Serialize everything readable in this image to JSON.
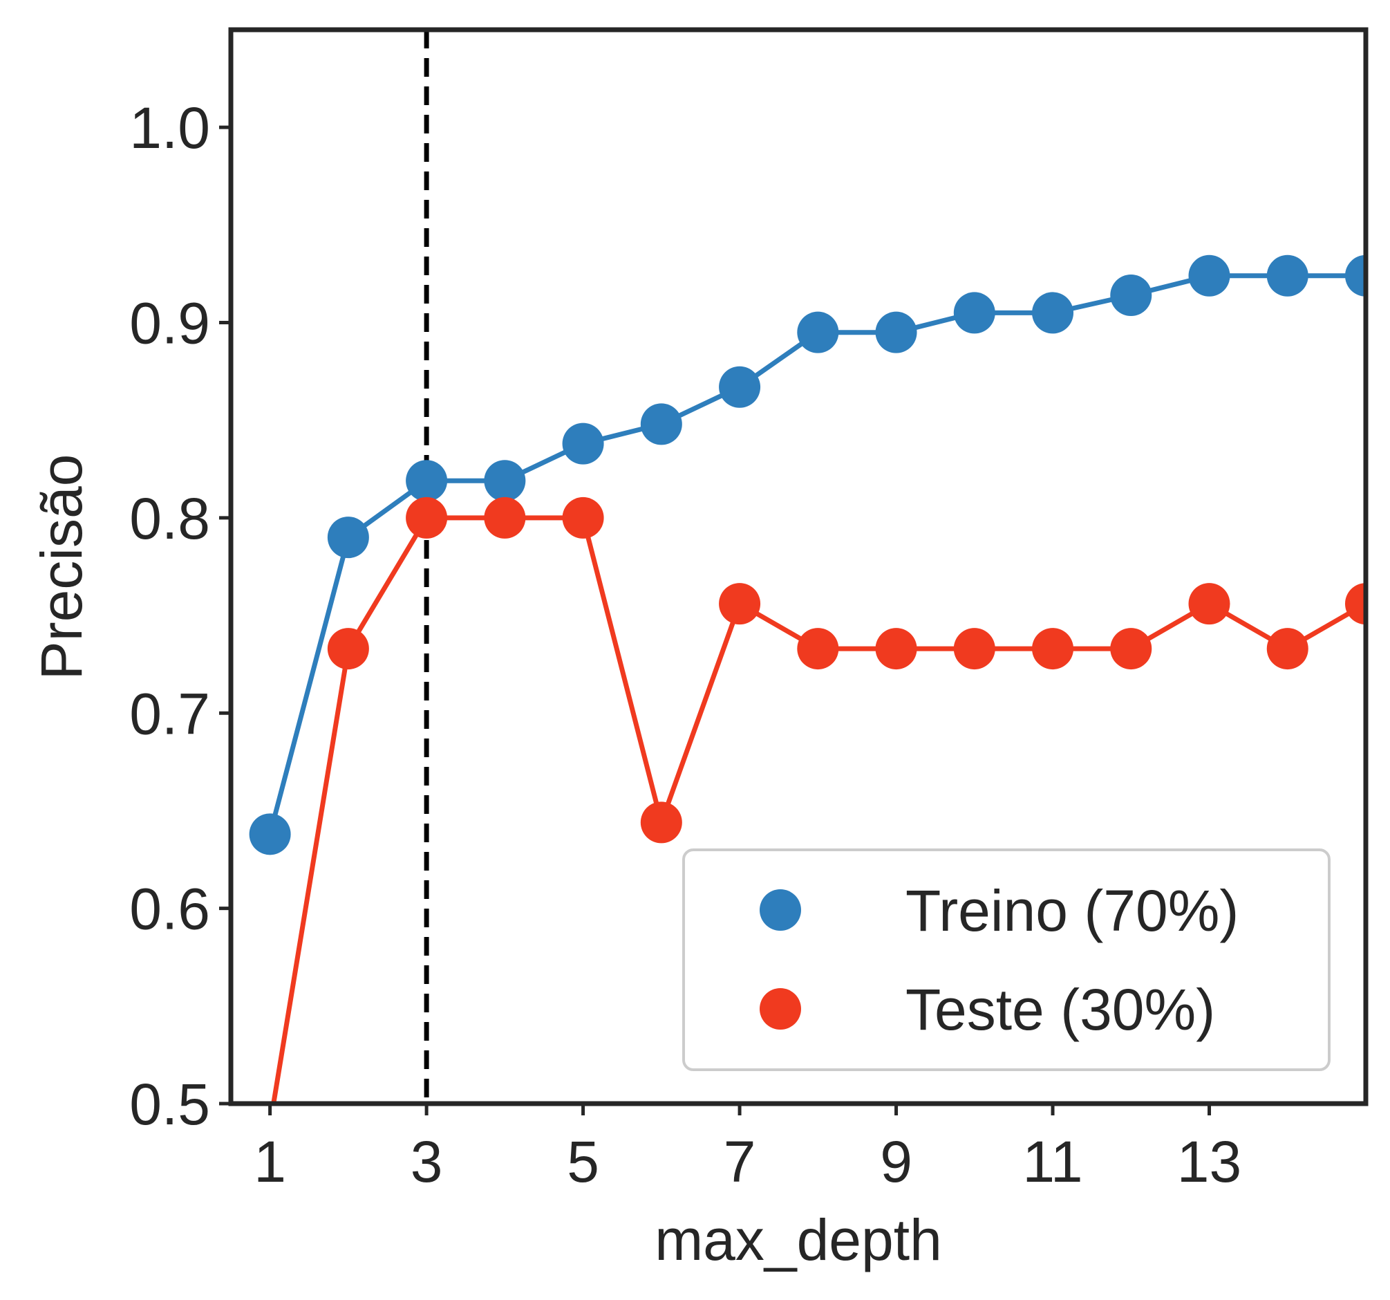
{
  "chart_data": {
    "type": "line",
    "title": "",
    "xlabel": "max_depth",
    "ylabel": "Precisão",
    "xlim": [
      0.5,
      15.0
    ],
    "ylim": [
      0.5,
      1.05
    ],
    "xticks": [
      1,
      3,
      5,
      7,
      9,
      11,
      13
    ],
    "yticks": [
      0.5,
      0.6,
      0.7,
      0.8,
      0.9,
      1.0
    ],
    "xtick_labels": [
      "1",
      "3",
      "5",
      "7",
      "9",
      "11",
      "13"
    ],
    "ytick_labels": [
      "0.5",
      "0.6",
      "0.7",
      "0.8",
      "0.9",
      "1.0"
    ],
    "x": [
      1,
      2,
      3,
      4,
      5,
      6,
      7,
      8,
      9,
      10,
      11,
      12,
      13,
      14,
      15
    ],
    "series": [
      {
        "name": "Treino (70%)",
        "color": "#2e7ebc",
        "values": [
          0.638,
          0.79,
          0.819,
          0.819,
          0.838,
          0.848,
          0.867,
          0.895,
          0.895,
          0.905,
          0.905,
          0.914,
          0.924,
          0.924,
          0.924
        ]
      },
      {
        "name": "Teste (30%)",
        "color": "#f03a1f",
        "values": [
          0.489,
          0.733,
          0.8,
          0.8,
          0.8,
          0.644,
          0.756,
          0.733,
          0.733,
          0.733,
          0.733,
          0.733,
          0.756,
          0.733,
          0.756
        ]
      }
    ],
    "reference_line": {
      "axis": "x",
      "value": 3,
      "style": "dashed",
      "color": "#000000"
    },
    "grid": false,
    "legend_position": "lower-right"
  }
}
